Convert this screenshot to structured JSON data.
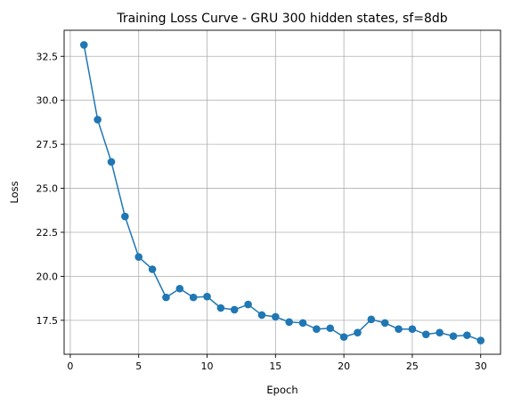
{
  "chart_data": {
    "type": "line",
    "title": "Training Loss Curve - GRU 300 hidden states, sf=8db",
    "xlabel": "Epoch",
    "ylabel": "Loss",
    "xlim": [
      -0.45,
      31.45
    ],
    "ylim": [
      15.57,
      33.98
    ],
    "xticks": [
      0,
      5,
      10,
      15,
      20,
      25,
      30
    ],
    "xtick_labels": [
      "0",
      "5",
      "10",
      "15",
      "20",
      "25",
      "30"
    ],
    "yticks": [
      17.5,
      20.0,
      22.5,
      25.0,
      27.5,
      30.0,
      32.5
    ],
    "ytick_labels": [
      "17.5",
      "20.0",
      "22.5",
      "25.0",
      "27.5",
      "30.0",
      "32.5"
    ],
    "grid": true,
    "marker": "circle",
    "color": "#1f77b4",
    "series": [
      {
        "x": [
          1,
          2,
          3,
          4,
          5,
          6,
          7,
          8,
          9,
          10,
          11,
          12,
          13,
          14,
          15,
          16,
          17,
          18,
          19,
          20,
          21,
          22,
          23,
          24,
          25,
          26,
          27,
          28,
          29,
          30
        ],
        "values": [
          33.15,
          28.9,
          26.5,
          23.4,
          21.1,
          20.4,
          18.8,
          19.3,
          18.8,
          18.85,
          18.2,
          18.1,
          18.4,
          17.8,
          17.7,
          17.4,
          17.35,
          17.0,
          17.05,
          16.55,
          16.8,
          17.55,
          17.35,
          17.0,
          17.0,
          16.7,
          16.8,
          16.6,
          16.65,
          16.35
        ]
      }
    ]
  }
}
